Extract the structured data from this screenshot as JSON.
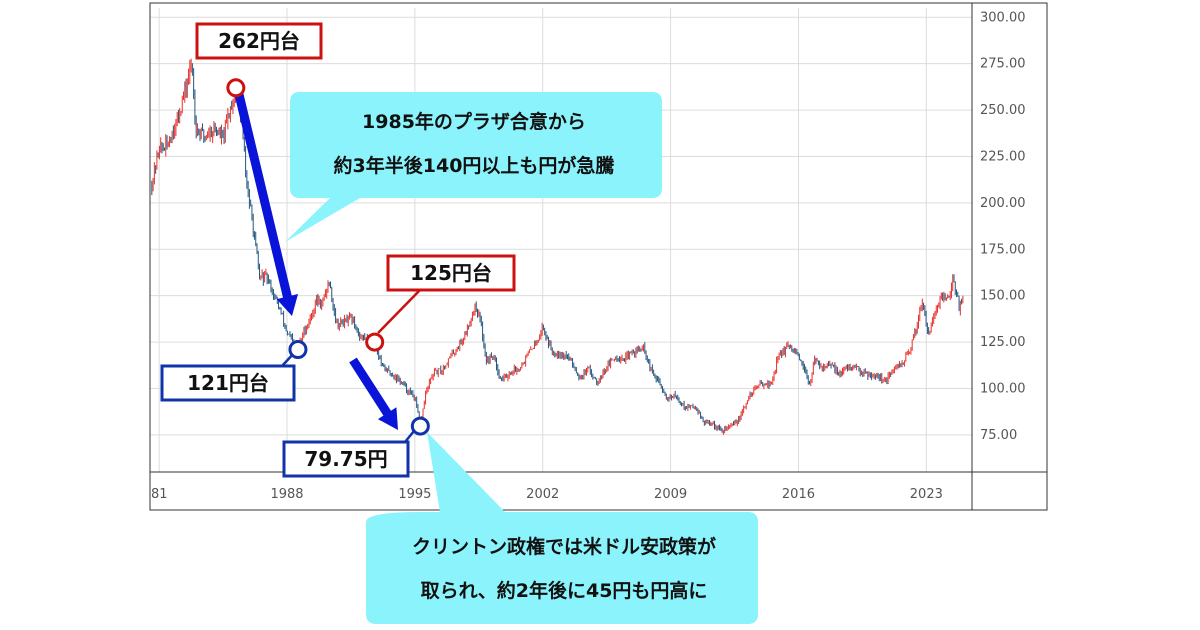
{
  "chart_data": {
    "type": "candlestick",
    "x_tick_labels": [
      "81",
      "1988",
      "1995",
      "2002",
      "2009",
      "2016",
      "2023"
    ],
    "x_tick_years": [
      1981,
      1988,
      1995,
      2002,
      2009,
      2016,
      2023
    ],
    "y_tick_labels": [
      "300.00",
      "275.00",
      "250.00",
      "225.00",
      "200.00",
      "175.00",
      "150.00",
      "125.00",
      "100.00",
      "75.00"
    ],
    "y_tick_values": [
      300,
      275,
      250,
      225,
      200,
      175,
      150,
      125,
      100,
      75
    ],
    "xlim": [
      1980.5,
      2025.5
    ],
    "ylim": [
      55,
      305
    ],
    "grid": true,
    "series": [
      {
        "points": [
          [
            1980.6,
            210
          ],
          [
            1981.0,
            230
          ],
          [
            1981.4,
            230
          ],
          [
            1982.0,
            245
          ],
          [
            1982.4,
            260
          ],
          [
            1982.8,
            275
          ],
          [
            1983.0,
            240
          ],
          [
            1983.5,
            236
          ],
          [
            1984.0,
            240
          ],
          [
            1984.5,
            235
          ],
          [
            1985.0,
            255
          ],
          [
            1985.2,
            262
          ],
          [
            1985.5,
            245
          ],
          [
            1985.8,
            210
          ],
          [
            1986.1,
            190
          ],
          [
            1986.5,
            160
          ],
          [
            1986.9,
            160
          ],
          [
            1987.3,
            150
          ],
          [
            1987.7,
            140
          ],
          [
            1988.0,
            130
          ],
          [
            1988.3,
            125
          ],
          [
            1988.6,
            121
          ],
          [
            1988.9,
            130
          ],
          [
            1989.3,
            138
          ],
          [
            1989.6,
            148
          ],
          [
            1989.9,
            145
          ],
          [
            1990.3,
            158
          ],
          [
            1990.7,
            135
          ],
          [
            1991.0,
            135
          ],
          [
            1991.5,
            138
          ],
          [
            1992.0,
            128
          ],
          [
            1992.5,
            126
          ],
          [
            1992.8,
            125
          ],
          [
            1993.2,
            112
          ],
          [
            1993.7,
            108
          ],
          [
            1994.2,
            104
          ],
          [
            1994.6,
            99
          ],
          [
            1995.0,
            95
          ],
          [
            1995.3,
            79.75
          ],
          [
            1995.6,
            98
          ],
          [
            1996.0,
            108
          ],
          [
            1996.5,
            110
          ],
          [
            1997.0,
            118
          ],
          [
            1997.4,
            123
          ],
          [
            1997.8,
            130
          ],
          [
            1998.3,
            145
          ],
          [
            1998.6,
            136
          ],
          [
            1998.9,
            115
          ],
          [
            1999.3,
            118
          ],
          [
            1999.7,
            105
          ],
          [
            2000.2,
            108
          ],
          [
            2000.8,
            112
          ],
          [
            2001.3,
            120
          ],
          [
            2001.8,
            128
          ],
          [
            2002.0,
            133
          ],
          [
            2002.5,
            120
          ],
          [
            2003.0,
            119
          ],
          [
            2003.5,
            116
          ],
          [
            2004.0,
            106
          ],
          [
            2004.5,
            110
          ],
          [
            2005.0,
            104
          ],
          [
            2005.5,
            112
          ],
          [
            2006.0,
            117
          ],
          [
            2006.5,
            116
          ],
          [
            2007.0,
            120
          ],
          [
            2007.5,
            122
          ],
          [
            2007.9,
            110
          ],
          [
            2008.3,
            104
          ],
          [
            2008.8,
            95
          ],
          [
            2009.2,
            96
          ],
          [
            2009.8,
            90
          ],
          [
            2010.4,
            90
          ],
          [
            2010.8,
            82
          ],
          [
            2011.3,
            81
          ],
          [
            2011.8,
            77
          ],
          [
            2012.3,
            80
          ],
          [
            2012.8,
            84
          ],
          [
            2013.2,
            94
          ],
          [
            2013.6,
            100
          ],
          [
            2014.0,
            103
          ],
          [
            2014.5,
            102
          ],
          [
            2014.9,
            118
          ],
          [
            2015.4,
            122
          ],
          [
            2015.8,
            120
          ],
          [
            2016.2,
            112
          ],
          [
            2016.6,
            103
          ],
          [
            2016.9,
            115
          ],
          [
            2017.3,
            112
          ],
          [
            2017.8,
            112
          ],
          [
            2018.3,
            108
          ],
          [
            2018.8,
            112
          ],
          [
            2019.3,
            110
          ],
          [
            2019.8,
            108
          ],
          [
            2020.3,
            107
          ],
          [
            2020.8,
            104
          ],
          [
            2021.2,
            110
          ],
          [
            2021.7,
            114
          ],
          [
            2022.1,
            120
          ],
          [
            2022.5,
            135
          ],
          [
            2022.8,
            148
          ],
          [
            2023.1,
            130
          ],
          [
            2023.5,
            141
          ],
          [
            2023.9,
            150
          ],
          [
            2024.2,
            148
          ],
          [
            2024.5,
            160
          ],
          [
            2024.8,
            143
          ],
          [
            2025.0,
            150
          ]
        ]
      }
    ],
    "annotations": [
      {
        "label": "262円台",
        "x": 1985.2,
        "y": 262,
        "marker_color": "#cc1111"
      },
      {
        "label": "121円台",
        "x": 1988.6,
        "y": 121,
        "marker_color": "#1133aa"
      },
      {
        "label": "125円台",
        "x": 1992.8,
        "y": 125,
        "marker_color": "#cc1111"
      },
      {
        "label": "79.75円",
        "x": 1995.3,
        "y": 79.75,
        "marker_color": "#1133aa"
      }
    ],
    "notes": [
      {
        "lines": [
          "1985年のプラザ合意から",
          "約3年半後140円以上も円が急騰"
        ]
      },
      {
        "lines": [
          "クリントン政権では米ドル安政策が",
          "取られ、約2年後に45円も円高に"
        ]
      }
    ]
  },
  "colors": {
    "up": "#e8302a",
    "down": "#23557e",
    "grid": "#dcdcdc",
    "frame": "#333333",
    "arrow": "#0a14d8",
    "note_fill": "#8af3fb",
    "red_label": "#cc1111",
    "blue_label": "#1133aa"
  }
}
